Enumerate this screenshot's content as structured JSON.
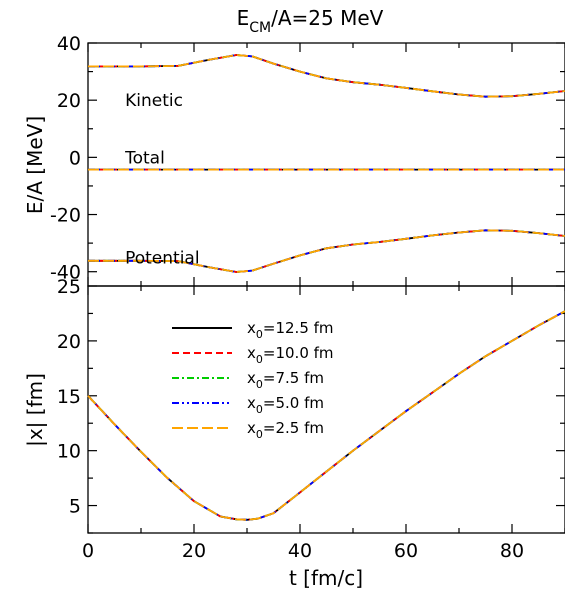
{
  "figure": {
    "title_main": "E",
    "title_sub": "CM",
    "title_rest": "/A=25 MeV"
  },
  "chart_data": [
    {
      "type": "line",
      "panel": "top",
      "xlabel": "",
      "ylabel": "E/A [MeV]",
      "xlim": [
        0,
        90
      ],
      "ylim": [
        -45,
        40
      ],
      "xticks": [
        0,
        20,
        40,
        60,
        80
      ],
      "yticks": [
        -40,
        -20,
        0,
        20,
        40
      ],
      "ytick_labels": [
        "-40",
        "-20",
        "0",
        "20",
        "40"
      ],
      "grid": false,
      "annotations": [
        {
          "text": "Kinetic",
          "x": 7,
          "y": 20
        },
        {
          "text": "Total",
          "x": 7,
          "y": 0
        },
        {
          "text": "Potential",
          "x": 7,
          "y": -35
        }
      ],
      "series": [
        {
          "group": "Kinetic",
          "color": "#000000",
          "x": [
            0,
            10,
            17,
            23,
            28,
            31,
            35,
            40,
            45,
            50,
            55,
            60,
            65,
            70,
            75,
            80,
            85,
            90
          ],
          "y": [
            31.8,
            31.8,
            32.0,
            34.2,
            35.8,
            35.3,
            32.8,
            30.0,
            27.6,
            26.3,
            25.4,
            24.3,
            23.1,
            22.0,
            21.2,
            21.4,
            22.2,
            23.2
          ]
        },
        {
          "group": "Total",
          "color": "#000000",
          "x": [
            0,
            90
          ],
          "y": [
            -4.3,
            -4.3
          ]
        },
        {
          "group": "Potential",
          "color": "#000000",
          "x": [
            0,
            10,
            17,
            23,
            28,
            31,
            35,
            40,
            45,
            50,
            55,
            60,
            65,
            70,
            75,
            80,
            85,
            90
          ],
          "y": [
            -36.2,
            -36.2,
            -36.3,
            -38.5,
            -40.1,
            -39.6,
            -37.2,
            -34.3,
            -31.8,
            -30.5,
            -29.6,
            -28.5,
            -27.3,
            -26.3,
            -25.5,
            -25.7,
            -26.5,
            -27.5
          ]
        }
      ]
    },
    {
      "type": "line",
      "panel": "bottom",
      "xlabel": "t [fm/c]",
      "ylabel": "|x| [fm]",
      "xlim": [
        0,
        90
      ],
      "ylim": [
        2.5,
        25
      ],
      "xticks": [
        0,
        20,
        40,
        60,
        80
      ],
      "xtick_labels": [
        "0",
        "20",
        "40",
        "60",
        "80"
      ],
      "yticks": [
        5,
        10,
        15,
        20,
        25
      ],
      "ytick_labels": [
        "5",
        "10",
        "15",
        "20",
        "25"
      ],
      "grid": false,
      "legend_position": "top-center",
      "x": [
        0,
        5,
        10,
        15,
        20,
        25,
        28,
        30,
        32,
        35,
        40,
        45,
        50,
        55,
        60,
        65,
        70,
        75,
        80,
        85,
        90
      ],
      "y": [
        15.0,
        12.4,
        9.9,
        7.5,
        5.4,
        4.0,
        3.75,
        3.7,
        3.8,
        4.3,
        6.2,
        8.1,
        10.0,
        11.8,
        13.6,
        15.3,
        17.0,
        18.6,
        20.0,
        21.4,
        22.7
      ],
      "series": [
        {
          "name": "x",
          "name_sub": "0",
          "name_rest": "=12.5 fm",
          "color": "#000000",
          "dash": "none"
        },
        {
          "name": "x",
          "name_sub": "0",
          "name_rest": "=10.0 fm",
          "color": "#ff0000",
          "dash": "7,4"
        },
        {
          "name": "x",
          "name_sub": "0",
          "name_rest": "=7.5 fm",
          "color": "#00cc00",
          "dash": "7,3,2,3"
        },
        {
          "name": "x",
          "name_sub": "0",
          "name_rest": "=5.0 fm",
          "color": "#0000ff",
          "dash": "7,3,2,3,2,3"
        },
        {
          "name": "x",
          "name_sub": "0",
          "name_rest": "=2.5 fm",
          "color": "#ffa500",
          "dash": "11,4"
        }
      ]
    }
  ]
}
